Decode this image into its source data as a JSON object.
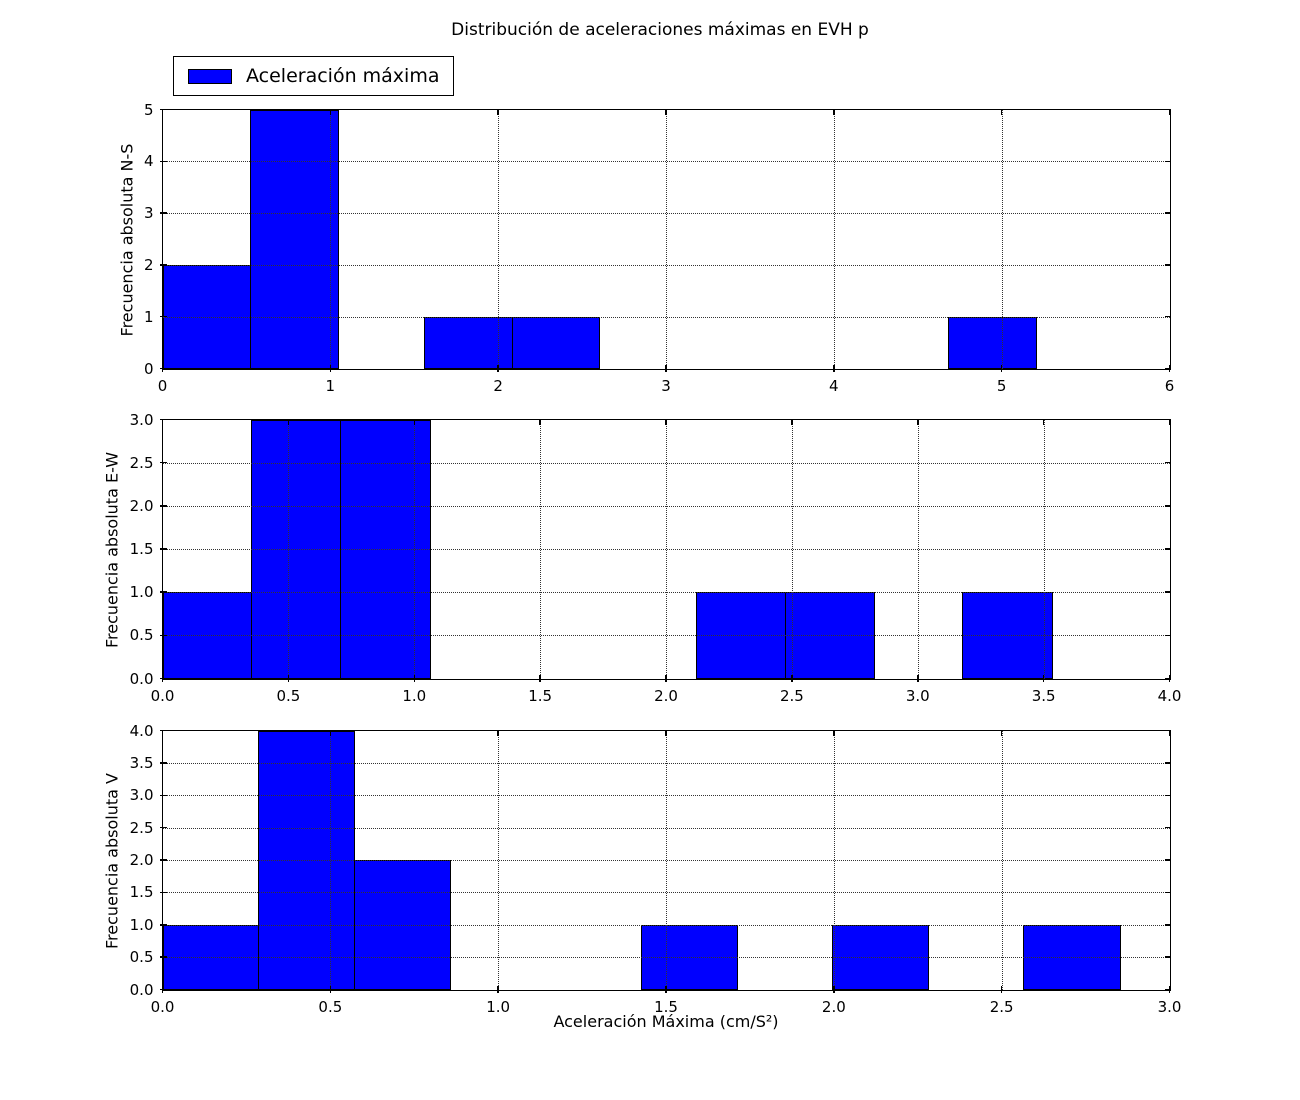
{
  "title": "Distribución de aceleraciones máximas en EVH p",
  "legend": {
    "label": "Aceleración máxima",
    "swatch_color": "#0000ff"
  },
  "xlabel": "Aceleración Máxima (cm/S²)",
  "colors": {
    "bar_fill": "#0000ff",
    "bar_edge": "#000000",
    "grid": "#333333",
    "spine": "#000000",
    "background": "#ffffff"
  },
  "chart_data": [
    {
      "type": "bar",
      "subtype": "histogram",
      "ylabel": "Frecuencia absoluta N-S",
      "bin_start": 0,
      "bin_width": 0.52,
      "counts": [
        2,
        5,
        0,
        1,
        1,
        0,
        0,
        0,
        0,
        1
      ],
      "xlim": [
        0,
        6
      ],
      "ylim": [
        0,
        5
      ],
      "xticks": [
        0,
        1,
        2,
        3,
        4,
        5,
        6
      ],
      "xtick_labels": [
        "0",
        "1",
        "2",
        "3",
        "4",
        "5",
        "6"
      ],
      "yticks": [
        0,
        1,
        2,
        3,
        4,
        5
      ],
      "ytick_labels": [
        "0",
        "1",
        "2",
        "3",
        "4",
        "5"
      ],
      "grid": "dotted"
    },
    {
      "type": "bar",
      "subtype": "histogram",
      "ylabel": "Frecuencia absoluta E-W",
      "bin_start": 0,
      "bin_width": 0.353,
      "counts": [
        1,
        3,
        3,
        0,
        0,
        0,
        1,
        1,
        0,
        1
      ],
      "xlim": [
        0,
        4
      ],
      "ylim": [
        0,
        3
      ],
      "xticks": [
        0,
        0.5,
        1,
        1.5,
        2,
        2.5,
        3,
        3.5,
        4
      ],
      "xtick_labels": [
        "0.0",
        "0.5",
        "1.0",
        "1.5",
        "2.0",
        "2.5",
        "3.0",
        "3.5",
        "4.0"
      ],
      "yticks": [
        0,
        0.5,
        1,
        1.5,
        2,
        2.5,
        3
      ],
      "ytick_labels": [
        "0.0",
        "0.5",
        "1.0",
        "1.5",
        "2.0",
        "2.5",
        "3.0"
      ],
      "grid": "dotted"
    },
    {
      "type": "bar",
      "subtype": "histogram",
      "ylabel": "Frecuencia absoluta V",
      "bin_start": 0,
      "bin_width": 0.285,
      "counts": [
        1,
        4,
        2,
        0,
        0,
        1,
        0,
        1,
        0,
        1
      ],
      "xlim": [
        0,
        3
      ],
      "ylim": [
        0,
        4
      ],
      "xticks": [
        0,
        0.5,
        1,
        1.5,
        2,
        2.5,
        3
      ],
      "xtick_labels": [
        "0.0",
        "0.5",
        "1.0",
        "1.5",
        "2.0",
        "2.5",
        "3.0"
      ],
      "yticks": [
        0,
        0.5,
        1,
        1.5,
        2,
        2.5,
        3,
        3.5,
        4
      ],
      "ytick_labels": [
        "0.0",
        "0.5",
        "1.0",
        "1.5",
        "2.0",
        "2.5",
        "3.0",
        "3.5",
        "4.0"
      ],
      "grid": "dotted"
    }
  ]
}
